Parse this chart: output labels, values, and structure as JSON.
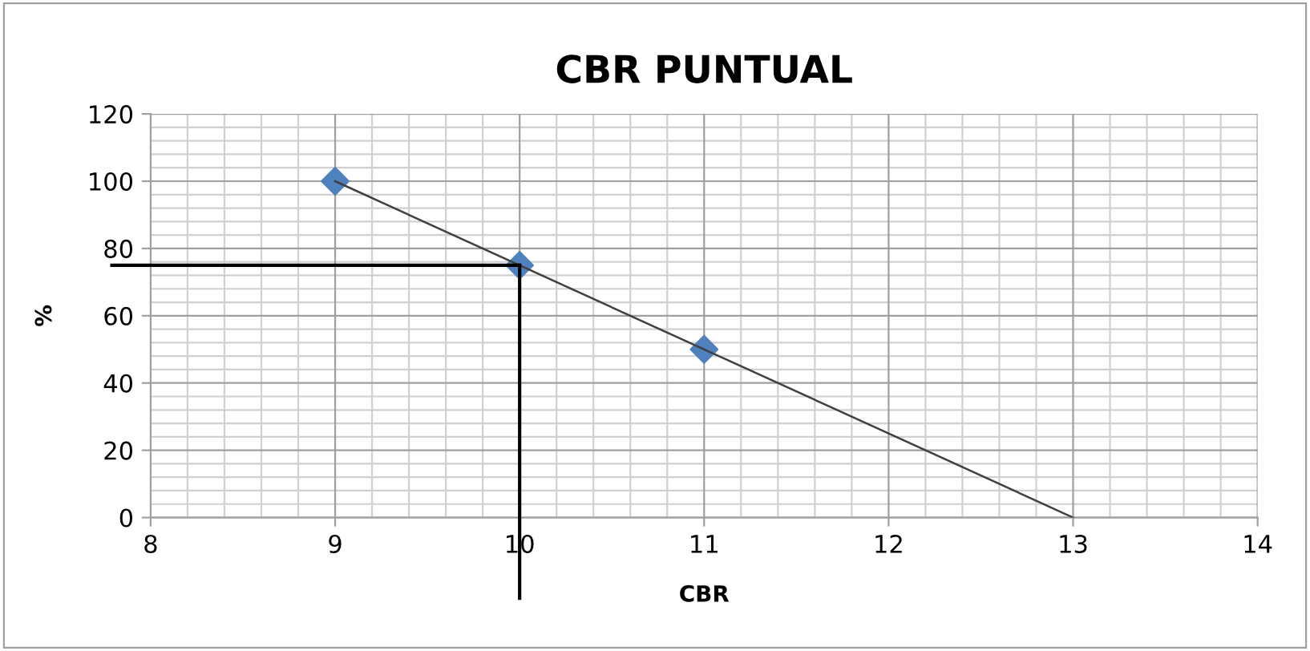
{
  "chart_data": {
    "type": "scatter",
    "title": "CBR PUNTUAL",
    "xlabel": "CBR",
    "ylabel": "%",
    "xlim": [
      8,
      14
    ],
    "xticks": [
      8,
      9,
      10,
      11,
      12,
      13,
      14
    ],
    "ylim": [
      0,
      120
    ],
    "yticks": [
      0,
      20,
      40,
      60,
      80,
      100,
      120
    ],
    "grid": true,
    "legend": false,
    "series": [
      {
        "color": "#4f81bd",
        "marker": "diamond",
        "x": [
          9,
          10,
          11
        ],
        "values": [
          100,
          75,
          50
        ]
      },
      {
        "type": "line",
        "color": "#404040",
        "marker": "none",
        "x": [
          9,
          13
        ],
        "values": [
          100,
          0
        ]
      }
    ],
    "ref_lines": [
      {
        "axis": "y",
        "value": 75,
        "color": "#000000"
      },
      {
        "axis": "x",
        "value": 10,
        "color": "#000000"
      }
    ]
  }
}
